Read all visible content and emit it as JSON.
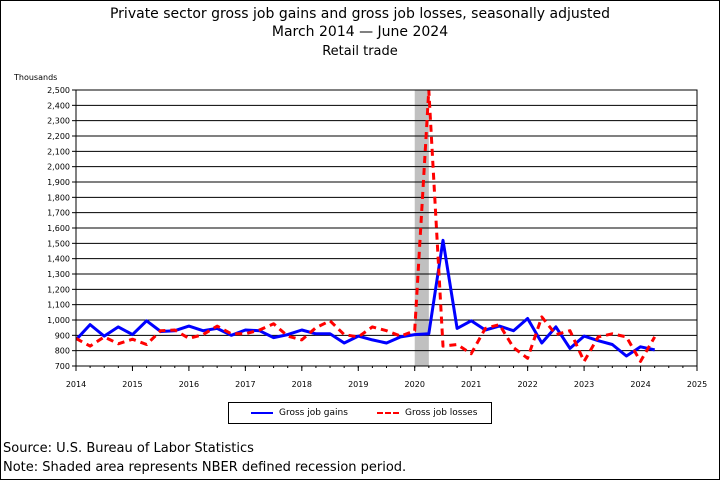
{
  "title": {
    "line1": "Private sector gross job gains and gross job losses, seasonally adjusted",
    "line2": "March 2014  — June 2024",
    "line3": "Retail trade"
  },
  "y_units": "Thousands",
  "legend": {
    "gains_label": "Gross job gains",
    "losses_label": "Gross job losses"
  },
  "footer": {
    "source": "Source: U.S. Bureau of Labor Statistics",
    "note": "Note: Shaded area represents NBER defined recession period."
  },
  "colors": {
    "gains": "#0000ff",
    "losses": "#ff0000",
    "recession": "#c0c0c0",
    "grid": "#000000"
  },
  "chart_data": {
    "type": "line",
    "xlabel": "",
    "ylabel": "Thousands",
    "xlim": [
      2014,
      2025
    ],
    "ylim": [
      700,
      2500
    ],
    "x_ticks": [
      "2014",
      "2015",
      "2016",
      "2017",
      "2018",
      "2019",
      "2020",
      "2021",
      "2022",
      "2023",
      "2024",
      "2025"
    ],
    "y_ticks": [
      "700",
      "800",
      "900",
      "1,000",
      "1,100",
      "1,200",
      "1,300",
      "1,400",
      "1,500",
      "1,600",
      "1,700",
      "1,800",
      "1,900",
      "2,000",
      "2,100",
      "2,200",
      "2,300",
      "2,400",
      "2,500"
    ],
    "recession": {
      "start": 2020.0,
      "end": 2020.25
    },
    "grid": "horizontal",
    "legend_position": "bottom",
    "series": [
      {
        "name": "Gross job gains",
        "style": "solid",
        "x": [
          2014.0,
          2014.25,
          2014.5,
          2014.75,
          2015.0,
          2015.25,
          2015.5,
          2015.75,
          2016.0,
          2016.25,
          2016.5,
          2016.75,
          2017.0,
          2017.25,
          2017.5,
          2017.75,
          2018.0,
          2018.25,
          2018.5,
          2018.75,
          2019.0,
          2019.25,
          2019.5,
          2019.75,
          2020.0,
          2020.25,
          2020.5,
          2020.75,
          2021.0,
          2021.25,
          2021.5,
          2021.75,
          2022.0,
          2022.25,
          2022.5,
          2022.75,
          2023.0,
          2023.25,
          2023.5,
          2023.75,
          2024.0,
          2024.25
        ],
        "values": [
          870,
          970,
          895,
          955,
          905,
          995,
          925,
          930,
          960,
          930,
          945,
          900,
          935,
          930,
          885,
          905,
          935,
          910,
          910,
          850,
          895,
          870,
          850,
          890,
          905,
          910,
          1520,
          945,
          995,
          935,
          960,
          930,
          1010,
          850,
          955,
          815,
          895,
          865,
          840,
          765,
          825,
          805
        ]
      },
      {
        "name": "Gross job losses",
        "style": "dashed",
        "x": [
          2014.0,
          2014.25,
          2014.5,
          2014.75,
          2015.0,
          2015.25,
          2015.5,
          2015.75,
          2016.0,
          2016.25,
          2016.5,
          2016.75,
          2017.0,
          2017.25,
          2017.5,
          2017.75,
          2018.0,
          2018.25,
          2018.5,
          2018.75,
          2019.0,
          2019.25,
          2019.5,
          2019.75,
          2020.0,
          2020.25,
          2020.5,
          2020.75,
          2021.0,
          2021.25,
          2021.5,
          2021.75,
          2022.0,
          2022.25,
          2022.5,
          2022.75,
          2023.0,
          2023.25,
          2023.5,
          2023.75,
          2024.0,
          2024.25
        ],
        "values": [
          880,
          830,
          890,
          845,
          875,
          840,
          930,
          935,
          880,
          905,
          960,
          910,
          910,
          935,
          975,
          895,
          870,
          950,
          995,
          905,
          890,
          955,
          930,
          895,
          930,
          2500,
          830,
          840,
          780,
          945,
          970,
          820,
          750,
          1020,
          905,
          930,
          730,
          890,
          910,
          890,
          730,
          890
        ]
      }
    ]
  }
}
